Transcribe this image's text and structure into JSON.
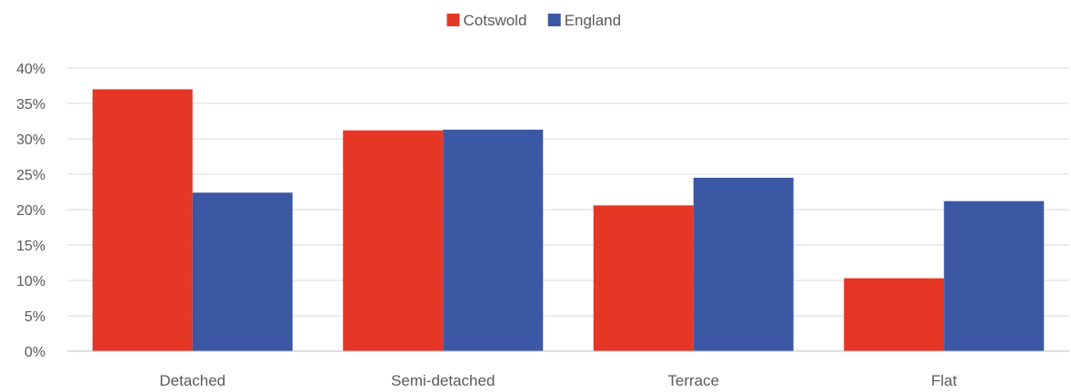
{
  "chart_data": {
    "type": "bar",
    "title": "",
    "xlabel": "",
    "ylabel": "",
    "categories": [
      "Detached",
      "Semi-detached",
      "Terrace",
      "Flat"
    ],
    "series": [
      {
        "name": "Cotswold",
        "color": "#e63625",
        "values": [
          37.0,
          31.2,
          20.6,
          10.3
        ]
      },
      {
        "name": "England",
        "color": "#3c57a4",
        "values": [
          22.4,
          31.3,
          24.5,
          21.2
        ]
      }
    ],
    "ylim": [
      0,
      40
    ],
    "yticks": [
      0,
      5,
      10,
      15,
      20,
      25,
      30,
      35,
      40
    ],
    "ytick_labels": [
      "0%",
      "5%",
      "10%",
      "15%",
      "20%",
      "25%",
      "30%",
      "35%",
      "40%"
    ],
    "legend_position": "top-center",
    "grid": true
  }
}
